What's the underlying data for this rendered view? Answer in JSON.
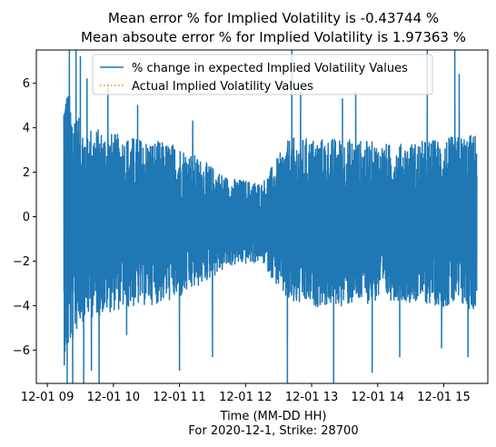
{
  "chart_data": {
    "type": "line",
    "title_lines": [
      "Mean error % for Implied Volatility is -0.43744 %",
      "Mean absoute error % for Implied Volatility is 1.97363 %"
    ],
    "xlabel_lines": [
      "Time (MM-DD HH)",
      "For 2020-12-1, Strike: 28700"
    ],
    "ylabel": "",
    "x_range": [
      "2020-12-01 08:50",
      "2020-12-01 15:40"
    ],
    "ylim": [
      -7.5,
      7.5
    ],
    "x_ticks": [
      {
        "label": "12-01 09",
        "value": "2020-12-01 09:00"
      },
      {
        "label": "12-01 10",
        "value": "2020-12-01 10:00"
      },
      {
        "label": "12-01 11",
        "value": "2020-12-01 11:00"
      },
      {
        "label": "12-01 12",
        "value": "2020-12-01 12:00"
      },
      {
        "label": "12-01 13",
        "value": "2020-12-01 13:00"
      },
      {
        "label": "12-01 14",
        "value": "2020-12-01 14:00"
      },
      {
        "label": "12-01 15",
        "value": "2020-12-01 15:00"
      }
    ],
    "y_ticks": [
      6,
      4,
      2,
      0,
      -2,
      -4,
      -6
    ],
    "grid": false,
    "legend_position": "top-right",
    "series": [
      {
        "name": "% change in expected Implied Volatility Values",
        "color": "#1f77b4",
        "style": "solid",
        "x_start": "2020-12-01 09:15",
        "x_end": "2020-12-01 15:30",
        "amplitude_profile": [
          {
            "t": "2020-12-01 09:15",
            "amp": 6.5
          },
          {
            "t": "2020-12-01 09:30",
            "amp": 4.5
          },
          {
            "t": "2020-12-01 10:00",
            "amp": 4.0
          },
          {
            "t": "2020-12-01 11:00",
            "amp": 3.5
          },
          {
            "t": "2020-12-01 11:45",
            "amp": 2.0
          },
          {
            "t": "2020-12-01 12:15",
            "amp": 1.8
          },
          {
            "t": "2020-12-01 12:40",
            "amp": 3.8
          },
          {
            "t": "2020-12-01 13:30",
            "amp": 3.8
          },
          {
            "t": "2020-12-01 14:15",
            "amp": 3.5
          },
          {
            "t": "2020-12-01 15:00",
            "amp": 3.8
          },
          {
            "t": "2020-12-01 15:30",
            "amp": 4.0
          }
        ],
        "spikes": [
          {
            "t": "2020-12-01 09:18",
            "y": -7.5
          },
          {
            "t": "2020-12-01 09:20",
            "y": 7.5
          },
          {
            "t": "2020-12-01 09:23",
            "y": -7.5
          },
          {
            "t": "2020-12-01 09:26",
            "y": 7.5
          },
          {
            "t": "2020-12-01 09:30",
            "y": 7.2
          },
          {
            "t": "2020-12-01 09:33",
            "y": -7.5
          },
          {
            "t": "2020-12-01 09:36",
            "y": 6.2
          },
          {
            "t": "2020-12-01 09:40",
            "y": -6.9
          },
          {
            "t": "2020-12-01 09:47",
            "y": -7.5
          },
          {
            "t": "2020-12-01 09:55",
            "y": 6.0
          },
          {
            "t": "2020-12-01 10:12",
            "y": -5.3
          },
          {
            "t": "2020-12-01 10:22",
            "y": 5.0
          },
          {
            "t": "2020-12-01 11:00",
            "y": -6.9
          },
          {
            "t": "2020-12-01 11:12",
            "y": 4.3
          },
          {
            "t": "2020-12-01 11:30",
            "y": -6.3
          },
          {
            "t": "2020-12-01 12:38",
            "y": -7.5
          },
          {
            "t": "2020-12-01 12:42",
            "y": 7.5
          },
          {
            "t": "2020-12-01 12:50",
            "y": 5.6
          },
          {
            "t": "2020-12-01 13:20",
            "y": -7.5
          },
          {
            "t": "2020-12-01 13:28",
            "y": 5.3
          },
          {
            "t": "2020-12-01 13:40",
            "y": 5.6
          },
          {
            "t": "2020-12-01 13:55",
            "y": -7.0
          },
          {
            "t": "2020-12-01 14:20",
            "y": -6.3
          },
          {
            "t": "2020-12-01 14:45",
            "y": 7.5
          },
          {
            "t": "2020-12-01 14:58",
            "y": -5.9
          },
          {
            "t": "2020-12-01 15:10",
            "y": 7.5
          },
          {
            "t": "2020-12-01 15:14",
            "y": 6.4
          },
          {
            "t": "2020-12-01 15:22",
            "y": -6.3
          }
        ]
      },
      {
        "name": "Actual Implied Volatility Values",
        "color": "#ff7f0e",
        "style": "dotted",
        "values": []
      }
    ]
  }
}
